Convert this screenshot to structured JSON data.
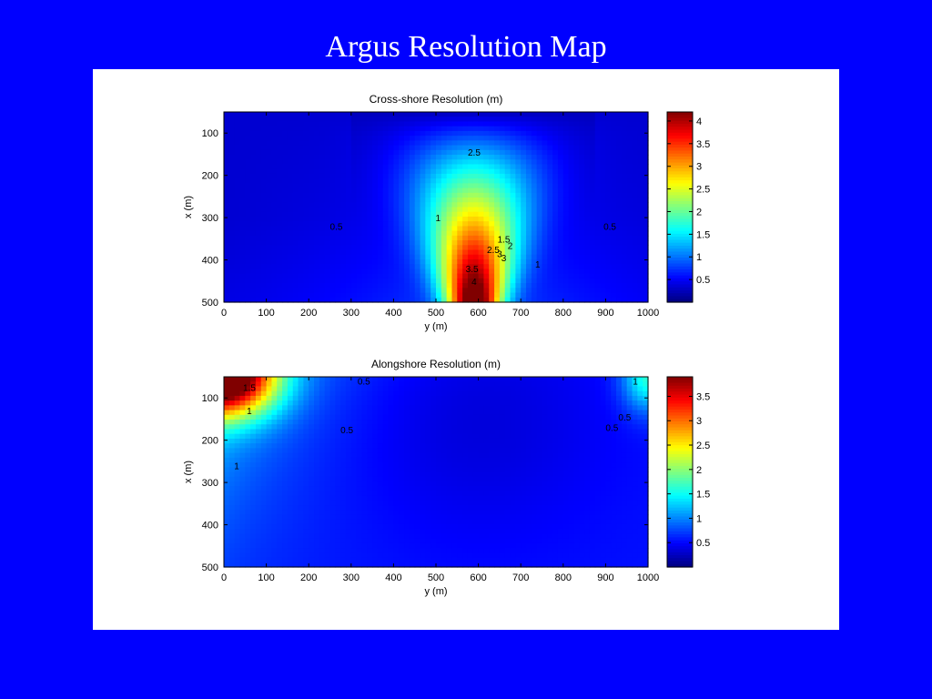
{
  "slide": {
    "title": "Argus Resolution Map",
    "background": "#0000ff"
  },
  "chart_data": [
    {
      "type": "heatmap",
      "title": "Cross-shore Resolution (m)",
      "xlabel": "y (m)",
      "ylabel": "x (m)",
      "xlim": [
        0,
        1000
      ],
      "ylim": [
        50,
        500
      ],
      "y_axis_reversed": true,
      "xticks": [
        "0",
        "100",
        "200",
        "300",
        "400",
        "500",
        "600",
        "700",
        "800",
        "900",
        "1000"
      ],
      "yticks": [
        "100",
        "200",
        "300",
        "400",
        "500"
      ],
      "colormap": "jet",
      "clim": [
        0,
        4.2
      ],
      "colorbar_ticks": [
        "0.5",
        "1",
        "1.5",
        "2",
        "2.5",
        "3",
        "3.5",
        "4"
      ],
      "contour_labels": [
        {
          "text": "2.5",
          "x": 590,
          "y": 145
        },
        {
          "text": "0.5",
          "x": 265,
          "y": 320
        },
        {
          "text": "0.5",
          "x": 910,
          "y": 320
        },
        {
          "text": "1",
          "x": 505,
          "y": 300
        },
        {
          "text": "1.5",
          "x": 660,
          "y": 350
        },
        {
          "text": "2",
          "x": 675,
          "y": 365
        },
        {
          "text": "2.5",
          "x": 635,
          "y": 375
        },
        {
          "text": "3",
          "x": 650,
          "y": 385
        },
        {
          "text": "3",
          "x": 660,
          "y": 395
        },
        {
          "text": "1",
          "x": 740,
          "y": 410
        },
        {
          "text": "3.5",
          "x": 585,
          "y": 420
        },
        {
          "text": "4",
          "x": 590,
          "y": 450
        }
      ]
    },
    {
      "type": "heatmap",
      "title": "Alongshore Resolution (m)",
      "xlabel": "y (m)",
      "ylabel": "x (m)",
      "xlim": [
        0,
        1000
      ],
      "ylim": [
        50,
        500
      ],
      "y_axis_reversed": true,
      "xticks": [
        "0",
        "100",
        "200",
        "300",
        "400",
        "500",
        "600",
        "700",
        "800",
        "900",
        "1000"
      ],
      "yticks": [
        "100",
        "200",
        "300",
        "400",
        "500"
      ],
      "colormap": "jet",
      "clim": [
        0,
        3.9
      ],
      "colorbar_ticks": [
        "0.5",
        "1",
        "1.5",
        "2",
        "2.5",
        "3",
        "3.5"
      ],
      "contour_labels": [
        {
          "text": "1.5",
          "x": 60,
          "y": 75
        },
        {
          "text": "1",
          "x": 60,
          "y": 130
        },
        {
          "text": "1",
          "x": 30,
          "y": 260
        },
        {
          "text": "0.5",
          "x": 330,
          "y": 60
        },
        {
          "text": "0.5",
          "x": 290,
          "y": 175
        },
        {
          "text": "0.5",
          "x": 945,
          "y": 145
        },
        {
          "text": "0.5",
          "x": 915,
          "y": 170
        },
        {
          "text": "1",
          "x": 970,
          "y": 60
        }
      ]
    }
  ]
}
